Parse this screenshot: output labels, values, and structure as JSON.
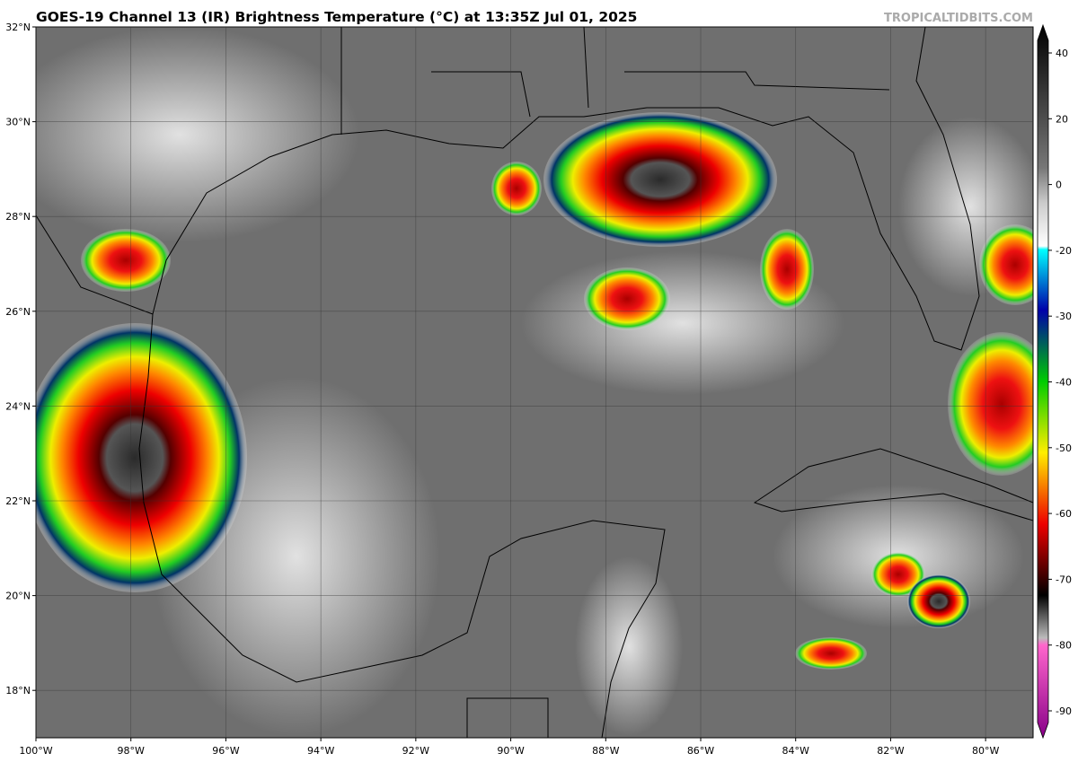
{
  "header": {
    "title": "GOES-19 Channel 13 (IR) Brightness Temperature (°C) at 13:35Z Jul 01, 2025",
    "credit": "TROPICALTIDBITS.COM"
  },
  "map": {
    "lon_range": [
      -100,
      -79
    ],
    "lat_range": [
      17,
      32
    ],
    "lon_ticks": [
      {
        "value": -100,
        "label": "100°W"
      },
      {
        "value": -98,
        "label": "98°W"
      },
      {
        "value": -96,
        "label": "96°W"
      },
      {
        "value": -94,
        "label": "94°W"
      },
      {
        "value": -92,
        "label": "92°W"
      },
      {
        "value": -90,
        "label": "90°W"
      },
      {
        "value": -88,
        "label": "88°W"
      },
      {
        "value": -86,
        "label": "86°W"
      },
      {
        "value": -84,
        "label": "84°W"
      },
      {
        "value": -82,
        "label": "82°W"
      },
      {
        "value": -80,
        "label": "80°W"
      }
    ],
    "lat_ticks": [
      {
        "value": 32,
        "label": "32°N"
      },
      {
        "value": 30,
        "label": "30°N"
      },
      {
        "value": 28,
        "label": "28°N"
      },
      {
        "value": 26,
        "label": "26°N"
      },
      {
        "value": 24,
        "label": "24°N"
      },
      {
        "value": 22,
        "label": "22°N"
      },
      {
        "value": 20,
        "label": "20°N"
      },
      {
        "value": 18,
        "label": "18°N"
      }
    ]
  },
  "colorbar": {
    "ticks": [
      40,
      20,
      0,
      -20,
      -30,
      -40,
      -50,
      -60,
      -70,
      -80,
      -90
    ]
  }
}
